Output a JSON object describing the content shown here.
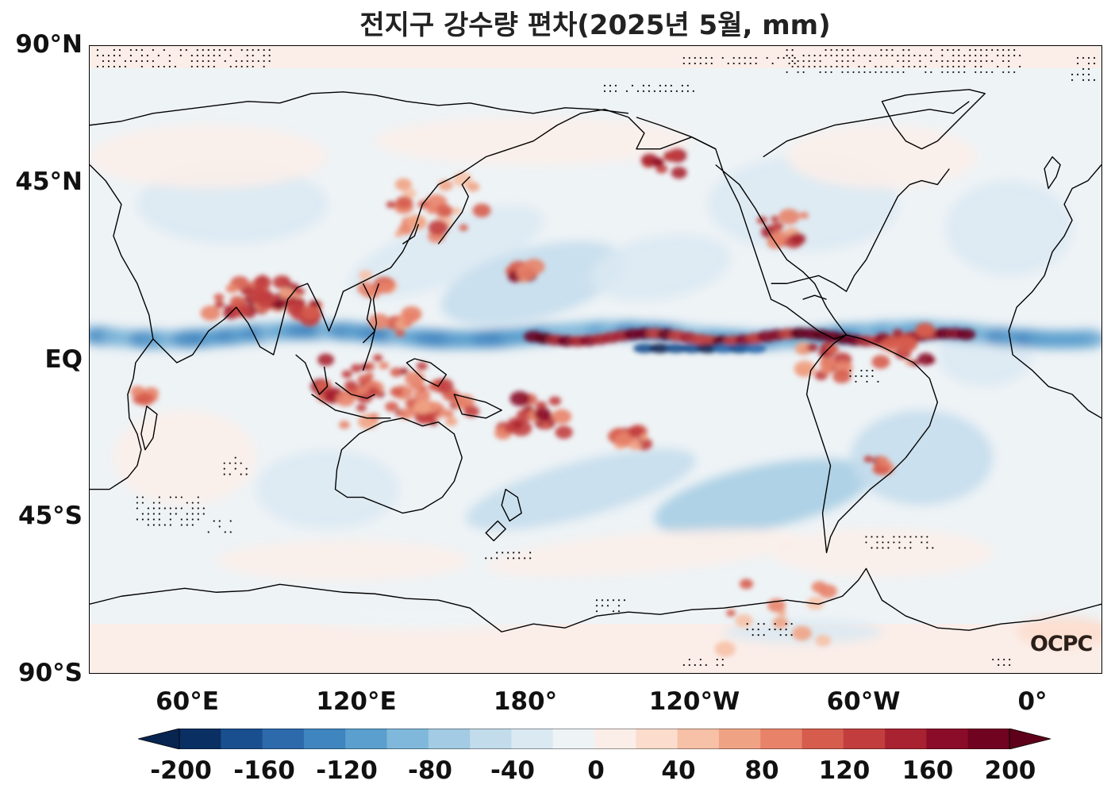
{
  "title": "전지구 강수량 편차(2025년 5월, mm)",
  "watermark": "OCPC",
  "map": {
    "lat_labels": [
      "90°N",
      "45°N",
      "EQ",
      "45°S",
      "90°S"
    ],
    "lon_labels": [
      "60°E",
      "120°E",
      "180°",
      "120°W",
      "60°W",
      "0°"
    ],
    "central_longitude_deg": 205,
    "lon_range": [
      25,
      385
    ],
    "lat_range": [
      -90,
      90
    ]
  },
  "colorbar": {
    "tick_labels": [
      "-200",
      "-160",
      "-120",
      "-80",
      "-40",
      "0",
      "40",
      "80",
      "120",
      "160",
      "200"
    ],
    "levels": [
      -200,
      -180,
      -160,
      -140,
      -120,
      -100,
      -80,
      -60,
      -40,
      -20,
      0,
      20,
      40,
      60,
      80,
      100,
      120,
      140,
      160,
      180,
      200
    ],
    "extend": "both",
    "colors": [
      "#0a2f62",
      "#1a4f8f",
      "#2c6aac",
      "#3f85bf",
      "#5a9fcd",
      "#7fb8da",
      "#a3cbe3",
      "#c3dcec",
      "#dbe9f2",
      "#eef3f6",
      "#fbeee9",
      "#fbdccd",
      "#f6c1a7",
      "#f0a384",
      "#e8836a",
      "#d65d4e",
      "#c23e3e",
      "#a82231",
      "#8a0c28",
      "#6f0320"
    ],
    "under_color": "#082450",
    "over_color": "#5e0019"
  }
}
